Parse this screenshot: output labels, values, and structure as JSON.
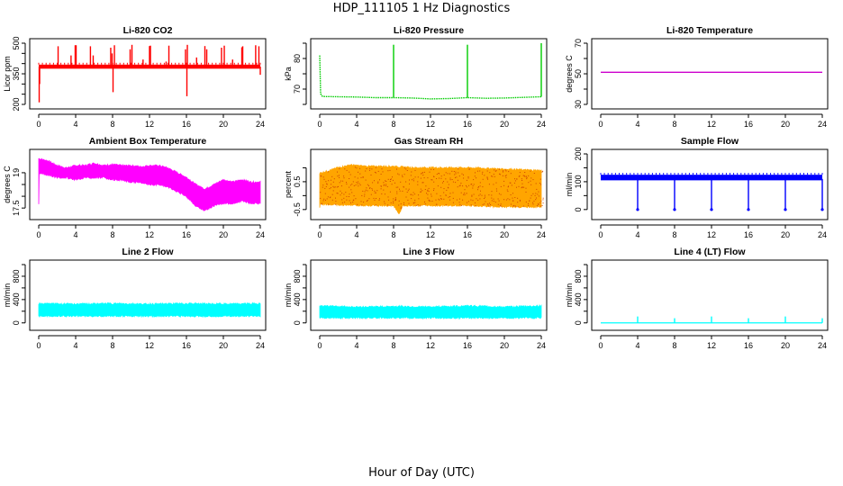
{
  "figure": {
    "title": "HDP_111105  1 Hz Diagnostics",
    "xlabel": "Hour of Day (UTC)"
  },
  "chart_data": [
    {
      "type": "line",
      "title": "Li-820 CO2",
      "ylabel": "Licor ppm",
      "color": "#ff0000",
      "xlim": [
        0,
        24
      ],
      "ylim": [
        200,
        500
      ],
      "xticks": [
        0,
        4,
        8,
        12,
        16,
        20,
        24
      ],
      "yticks": [
        200,
        350,
        500
      ],
      "yminor": [
        250,
        300,
        400,
        450
      ],
      "series": [
        {
          "name": "CO2",
          "baseline": 385,
          "band": [
            375,
            395
          ],
          "spikes": [
            [
              0.05,
              210
            ],
            [
              0.1,
              300
            ],
            [
              0.8,
              395
            ],
            [
              2.1,
              485
            ],
            [
              3.5,
              440
            ],
            [
              3.95,
              490
            ],
            [
              4.05,
              490
            ],
            [
              5.6,
              485
            ],
            [
              5.9,
              440
            ],
            [
              7.8,
              478
            ],
            [
              7.95,
              450
            ],
            [
              8.05,
              260
            ],
            [
              8.2,
              490
            ],
            [
              9.9,
              470
            ],
            [
              10.1,
              492
            ],
            [
              11.3,
              420
            ],
            [
              12.0,
              486
            ],
            [
              12.1,
              488
            ],
            [
              13.8,
              410
            ],
            [
              14.1,
              488
            ],
            [
              15.9,
              470
            ],
            [
              16.05,
              240
            ],
            [
              16.1,
              492
            ],
            [
              17.1,
              430
            ],
            [
              18.0,
              486
            ],
            [
              18.2,
              470
            ],
            [
              19.8,
              478
            ],
            [
              20.1,
              488
            ],
            [
              21.0,
              420
            ],
            [
              22.0,
              480
            ],
            [
              22.1,
              485
            ],
            [
              23.5,
              490
            ],
            [
              23.85,
              485
            ],
            [
              24.0,
              345
            ]
          ]
        }
      ]
    },
    {
      "type": "line",
      "title": "Li-820 Pressure",
      "ylabel": "kPa",
      "color": "#00cc00",
      "xlim": [
        0,
        24
      ],
      "ylim": [
        65,
        85
      ],
      "xticks": [
        0,
        4,
        8,
        12,
        16,
        20,
        24
      ],
      "yticks": [
        70,
        80
      ],
      "yminor": [
        65,
        75,
        85
      ],
      "series": [
        {
          "name": "Pressure",
          "values": [
            [
              0.0,
              81
            ],
            [
              0.1,
              68.5
            ],
            [
              0.3,
              67.6
            ],
            [
              2,
              67.5
            ],
            [
              4,
              67.4
            ],
            [
              6,
              67.2
            ],
            [
              8,
              67.2
            ],
            [
              10,
              67.1
            ],
            [
              12,
              66.8
            ],
            [
              14,
              66.9
            ],
            [
              16,
              67.2
            ],
            [
              18,
              67.0
            ],
            [
              20,
              67.1
            ],
            [
              22,
              67.3
            ],
            [
              24,
              67.5
            ]
          ],
          "spikes": [
            [
              0.0,
              81
            ],
            [
              8.0,
              84.5
            ],
            [
              16.0,
              84.5
            ],
            [
              24.0,
              85
            ]
          ]
        }
      ]
    },
    {
      "type": "line",
      "title": "Li-820 Temperature",
      "ylabel": "degrees C",
      "color": "#cc00cc",
      "xlim": [
        0,
        24
      ],
      "ylim": [
        30,
        70
      ],
      "xticks": [
        0,
        4,
        8,
        12,
        16,
        20,
        24
      ],
      "yticks": [
        30,
        50,
        70
      ],
      "yminor": [
        40,
        60
      ],
      "series": [
        {
          "name": "Temperature",
          "values": [
            [
              0,
              51
            ],
            [
              24,
              51
            ]
          ]
        }
      ]
    },
    {
      "type": "area",
      "title": "Ambient Box Temperature",
      "ylabel": "degrees C",
      "color": "#ff00ff",
      "xlim": [
        0,
        24
      ],
      "ylim": [
        17.2,
        19.8
      ],
      "xticks": [
        0,
        4,
        8,
        12,
        16,
        20,
        24
      ],
      "yticks": [
        17.5,
        19.0
      ],
      "yminor": [
        18.0,
        18.5
      ],
      "series": [
        {
          "name": "Box Temp",
          "upper": [
            [
              0,
              19.6
            ],
            [
              1,
              19.5
            ],
            [
              2,
              19.3
            ],
            [
              3,
              19.2
            ],
            [
              4,
              19.3
            ],
            [
              5,
              19.3
            ],
            [
              6,
              19.4
            ],
            [
              7,
              19.3
            ],
            [
              8,
              19.35
            ],
            [
              9,
              19.3
            ],
            [
              10,
              19.3
            ],
            [
              11,
              19.25
            ],
            [
              12,
              19.3
            ],
            [
              13,
              19.3
            ],
            [
              14,
              19.2
            ],
            [
              15,
              19.0
            ],
            [
              16,
              18.8
            ],
            [
              17,
              18.5
            ],
            [
              18,
              18.3
            ],
            [
              19,
              18.5
            ],
            [
              20,
              18.7
            ],
            [
              21,
              18.6
            ],
            [
              22,
              18.7
            ],
            [
              23,
              18.6
            ],
            [
              24,
              18.6
            ]
          ],
          "lower": [
            [
              0,
              19.0
            ],
            [
              1,
              18.9
            ],
            [
              2,
              18.8
            ],
            [
              3,
              18.8
            ],
            [
              4,
              18.7
            ],
            [
              5,
              18.8
            ],
            [
              6,
              18.8
            ],
            [
              7,
              18.8
            ],
            [
              8,
              18.7
            ],
            [
              9,
              18.7
            ],
            [
              10,
              18.6
            ],
            [
              11,
              18.6
            ],
            [
              12,
              18.5
            ],
            [
              13,
              18.5
            ],
            [
              14,
              18.4
            ],
            [
              15,
              18.2
            ],
            [
              16,
              18.0
            ],
            [
              17,
              17.6
            ],
            [
              18,
              17.4
            ],
            [
              19,
              17.6
            ],
            [
              20,
              17.7
            ],
            [
              21,
              17.7
            ],
            [
              22,
              17.8
            ],
            [
              23,
              17.7
            ],
            [
              24,
              17.7
            ]
          ]
        }
      ]
    },
    {
      "type": "area",
      "title": "Gas Stream RH",
      "ylabel": "percent",
      "color": "#ffa500",
      "dots": "#cc4400",
      "xlim": [
        0,
        24
      ],
      "ylim": [
        -0.7,
        1.5
      ],
      "xticks": [
        0,
        4,
        8,
        12,
        16,
        20,
        24
      ],
      "yticks": [
        -0.5,
        0.5
      ],
      "yminor": [
        0.0,
        1.0
      ],
      "series": [
        {
          "name": "RH",
          "upper": [
            [
              0,
              0.8
            ],
            [
              2,
              1.0
            ],
            [
              3.3,
              1.1
            ],
            [
              5,
              1.05
            ],
            [
              8,
              1.05
            ],
            [
              10,
              1.0
            ],
            [
              12,
              1.0
            ],
            [
              16,
              1.0
            ],
            [
              20,
              0.95
            ],
            [
              24,
              0.9
            ]
          ],
          "lower": [
            [
              0,
              -0.3
            ],
            [
              4,
              -0.35
            ],
            [
              8,
              -0.35
            ],
            [
              8.6,
              -0.65
            ],
            [
              9,
              -0.35
            ],
            [
              16,
              -0.35
            ],
            [
              20,
              -0.4
            ],
            [
              24,
              -0.4
            ]
          ]
        }
      ]
    },
    {
      "type": "line",
      "title": "Sample Flow",
      "ylabel": "ml/min",
      "color": "#0000ff",
      "xlim": [
        0,
        24
      ],
      "ylim": [
        -20,
        200
      ],
      "xticks": [
        0,
        4,
        8,
        12,
        16,
        20,
        24
      ],
      "yticks": [
        0,
        100,
        200
      ],
      "yminor": [
        50,
        150
      ],
      "series": [
        {
          "name": "Sample Flow",
          "baseline": 110,
          "band": [
            105,
            125
          ],
          "dips": [
            [
              4.0,
              0
            ],
            [
              8.0,
              0
            ],
            [
              12.0,
              0
            ],
            [
              16.0,
              0
            ],
            [
              20.0,
              0
            ],
            [
              24.0,
              0
            ]
          ]
        }
      ]
    },
    {
      "type": "area",
      "title": "Line 2 Flow",
      "ylabel": "ml/min",
      "color": "#00ffff",
      "xlim": [
        0,
        24
      ],
      "ylim": [
        -50,
        1000
      ],
      "xticks": [
        0,
        4,
        8,
        12,
        16,
        20,
        24
      ],
      "yticks": [
        0,
        400,
        800
      ],
      "yminor": [
        200,
        600,
        1000
      ],
      "series": [
        {
          "name": "Line 2",
          "upper": [
            [
              0,
              330
            ],
            [
              4,
              320
            ],
            [
              8,
              330
            ],
            [
              12,
              320
            ],
            [
              16,
              330
            ],
            [
              20,
              320
            ],
            [
              24,
              330
            ]
          ],
          "lower": [
            [
              0,
              120
            ],
            [
              24,
              120
            ]
          ]
        }
      ]
    },
    {
      "type": "area",
      "title": "Line 3 Flow",
      "ylabel": "ml/min",
      "color": "#00ffff",
      "xlim": [
        0,
        24
      ],
      "ylim": [
        -50,
        1000
      ],
      "xticks": [
        0,
        4,
        8,
        12,
        16,
        20,
        24
      ],
      "yticks": [
        0,
        400,
        800
      ],
      "yminor": [
        200,
        600,
        1000
      ],
      "series": [
        {
          "name": "Line 3",
          "upper": [
            [
              0,
              290
            ],
            [
              4,
              270
            ],
            [
              8,
              280
            ],
            [
              12,
              270
            ],
            [
              16,
              290
            ],
            [
              20,
              270
            ],
            [
              24,
              290
            ]
          ],
          "lower": [
            [
              0,
              90
            ],
            [
              24,
              90
            ]
          ]
        }
      ]
    },
    {
      "type": "line",
      "title": "Line 4 (LT) Flow",
      "ylabel": "ml/min",
      "color": "#00ffff",
      "xlim": [
        0,
        24
      ],
      "ylim": [
        -50,
        1000
      ],
      "xticks": [
        0,
        4,
        8,
        12,
        16,
        20,
        24
      ],
      "yticks": [
        0,
        400,
        800
      ],
      "yminor": [
        200,
        600,
        1000
      ],
      "series": [
        {
          "name": "Line 4",
          "baseline": 0,
          "spikes": [
            [
              4.0,
              110
            ],
            [
              8.0,
              80
            ],
            [
              12.0,
              110
            ],
            [
              16.0,
              80
            ],
            [
              20.0,
              110
            ],
            [
              24.0,
              80
            ]
          ]
        }
      ]
    }
  ]
}
